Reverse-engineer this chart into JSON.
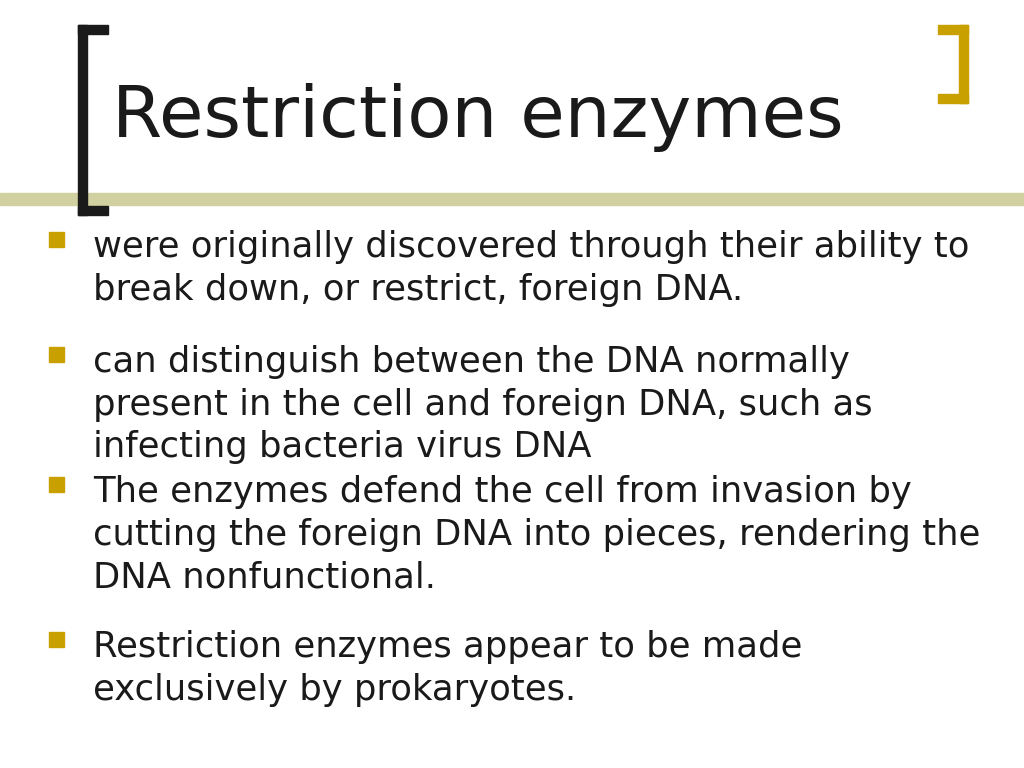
{
  "title": "Restriction enzymes",
  "title_fontsize": 52,
  "title_color": "#1a1a1a",
  "title_font": "DejaVu Sans",
  "background_color": "#ffffff",
  "left_bracket_color": "#1a1a1a",
  "right_bracket_color": "#c8a000",
  "divider_color": "#d0d0a0",
  "bullet_color": "#c8a000",
  "text_color": "#1a1a1a",
  "bullet_fontsize": 25.5,
  "bullets": [
    "were originally discovered through their ability to\nbreak down, or restrict, foreign DNA.",
    "can distinguish between the DNA normally\npresent in the cell and foreign DNA, such as\ninfecting bacteria virus DNA",
    "The enzymes defend the cell from invasion by\ncutting the foreign DNA into pieces, rendering the\nDNA nonfunctional.",
    "Restriction enzymes appear to be made\nexclusively by prokaryotes."
  ]
}
